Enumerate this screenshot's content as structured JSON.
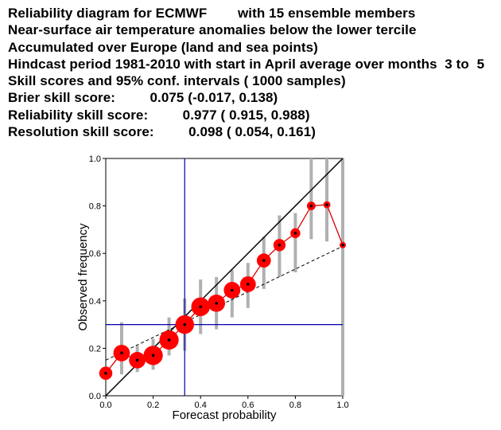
{
  "header": {
    "lines": [
      "Reliability diagram for ECMWF        with 15 ensemble members",
      "Near-surface air temperature anomalies below the lower tercile",
      "Accumulated over Europe (land and sea points)",
      "Hindcast period 1981-2010 with start in April average over months  3 to  5",
      "Skill scores and 95% conf. intervals ( 1000 samples)",
      "Brier skill score:         0.075 (-0.017, 0.138)",
      "Reliability skill score:         0.977 ( 0.915, 0.988)",
      "Resolution skill score:         0.098 ( 0.054, 0.161)"
    ]
  },
  "chart_data": {
    "type": "scatter",
    "xlabel": "Forecast probability",
    "ylabel": "Observed frequency",
    "xlim": [
      0,
      1
    ],
    "ylim": [
      0,
      1
    ],
    "xticks": [
      "0.0",
      "0.2",
      "0.4",
      "0.6",
      "0.8",
      "1.0"
    ],
    "yticks": [
      "0.0",
      "0.2",
      "0.4",
      "0.6",
      "0.8",
      "1.0"
    ],
    "grid": false,
    "climatology_x": 0.333,
    "climatology_y": 0.3,
    "resolution_line": [
      [
        0,
        0.15
      ],
      [
        1,
        0.63
      ]
    ],
    "perfect_reliability": [
      [
        0,
        0
      ],
      [
        1,
        1
      ]
    ],
    "points": [
      {
        "x": 0.0,
        "y": 0.095,
        "size": 0.35,
        "ci": null
      },
      {
        "x": 0.067,
        "y": 0.18,
        "size": 0.55,
        "ci": [
          0.09,
          0.31
        ]
      },
      {
        "x": 0.133,
        "y": 0.15,
        "size": 0.55,
        "ci": [
          0.1,
          0.21
        ]
      },
      {
        "x": 0.2,
        "y": 0.17,
        "size": 0.75,
        "ci": [
          0.11,
          0.24
        ]
      },
      {
        "x": 0.267,
        "y": 0.235,
        "size": 0.75,
        "ci": [
          0.17,
          0.33
        ]
      },
      {
        "x": 0.333,
        "y": 0.3,
        "size": 0.7,
        "ci": [
          0.19,
          0.41
        ]
      },
      {
        "x": 0.4,
        "y": 0.375,
        "size": 0.7,
        "ci": [
          0.26,
          0.49
        ]
      },
      {
        "x": 0.467,
        "y": 0.39,
        "size": 0.6,
        "ci": [
          0.28,
          0.5
        ]
      },
      {
        "x": 0.533,
        "y": 0.445,
        "size": 0.55,
        "ci": [
          0.33,
          0.53
        ]
      },
      {
        "x": 0.6,
        "y": 0.47,
        "size": 0.5,
        "ci": [
          0.37,
          0.56
        ]
      },
      {
        "x": 0.667,
        "y": 0.57,
        "size": 0.4,
        "ci": [
          0.45,
          0.67
        ]
      },
      {
        "x": 0.733,
        "y": 0.635,
        "size": 0.3,
        "ci": [
          0.5,
          0.76
        ]
      },
      {
        "x": 0.8,
        "y": 0.685,
        "size": 0.2,
        "ci": [
          0.52,
          0.77
        ]
      },
      {
        "x": 0.867,
        "y": 0.8,
        "size": 0.15,
        "ci": [
          0.66,
          1.0
        ]
      },
      {
        "x": 0.933,
        "y": 0.805,
        "size": 0.1,
        "ci": [
          0.65,
          1.0
        ]
      },
      {
        "x": 1.0,
        "y": 0.635,
        "size": 0.08,
        "ci": [
          0.0,
          1.0
        ]
      }
    ],
    "colors": {
      "points": "#ff0000",
      "line": "#dd0000",
      "ci": "#b0b0b0",
      "climatology": "#0000aa",
      "diagonal": "#000000",
      "dot": "#000000"
    }
  }
}
